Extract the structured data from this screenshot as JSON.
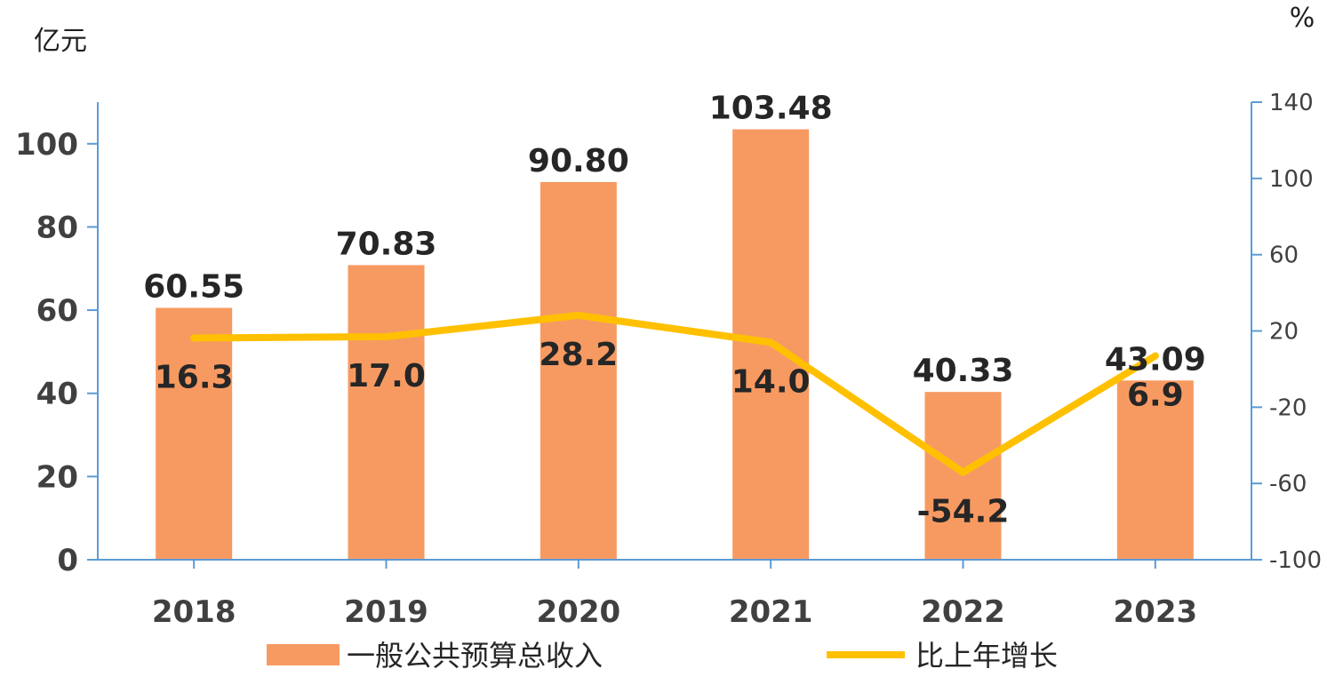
{
  "chart_data": {
    "type": "bar",
    "categories": [
      "2018",
      "2019",
      "2020",
      "2021",
      "2022",
      "2023"
    ],
    "series": [
      {
        "name": "一般公共预算总收入",
        "type": "bar",
        "axis": "left",
        "color": "#F79A62",
        "values": [
          60.55,
          70.83,
          90.8,
          103.48,
          40.33,
          43.09
        ],
        "labels": [
          "60.55",
          "70.83",
          "90.80",
          "103.48",
          "40.33",
          "43.09"
        ]
      },
      {
        "name": "比上年增长",
        "type": "line",
        "axis": "right",
        "color": "#FFC000",
        "values": [
          16.3,
          17.0,
          28.2,
          14.0,
          -54.2,
          6.9
        ],
        "labels": [
          "16.3",
          "17.0",
          "28.2",
          "14.0",
          "-54.2",
          "6.9"
        ]
      }
    ],
    "left_axis": {
      "unit": "亿元",
      "min": 0,
      "max": 110,
      "ticks": [
        0,
        20,
        40,
        60,
        80,
        100
      ],
      "tick_labels": [
        "0",
        "20",
        "40",
        "60",
        "80",
        "100"
      ]
    },
    "right_axis": {
      "unit": "%",
      "min": -100,
      "max": 140,
      "ticks": [
        -100,
        -60,
        -20,
        20,
        60,
        100,
        140
      ],
      "tick_labels": [
        "-100",
        "-60",
        "-20",
        "20",
        "60",
        "100",
        "140"
      ]
    },
    "grid": false,
    "legend": "bottom"
  }
}
